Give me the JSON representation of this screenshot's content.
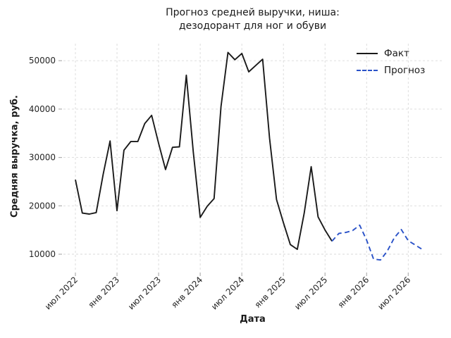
{
  "title": {
    "line1": "Прогноз средней выручки, ниша:",
    "line2": "дезодорант для ног и обуви"
  },
  "axes": {
    "x_label": "Дата",
    "y_label": "Средняя выручка, руб."
  },
  "legend": [
    {
      "label": "Факт",
      "style": "solid",
      "color": "#1a1a1a"
    },
    {
      "label": "Прогноз",
      "style": "dashed",
      "color": "#2a52c8"
    }
  ],
  "chart_data": {
    "type": "line",
    "title": "Прогноз средней выручки, ниша: дезодорант для ног и обуви",
    "xlabel": "Дата",
    "ylabel": "Средняя выручка, руб.",
    "grid": true,
    "grid_style": "dashed-light-gray",
    "legend_position": "upper right",
    "x_tick_labels": [
      "июл 2022",
      "янв 2023",
      "июл 2023",
      "янв 2024",
      "июл 2024",
      "янв 2025",
      "июл 2025",
      "янв 2026",
      "июл 2026"
    ],
    "x_tick_month_index": [
      0,
      6,
      12,
      18,
      24,
      30,
      36,
      42,
      48
    ],
    "y_ticks": [
      10000,
      20000,
      30000,
      40000,
      50000
    ],
    "ylim": [
      6500,
      53500
    ],
    "x_origin_month": "2022-07",
    "series": [
      {
        "name": "Факт",
        "color": "#1a1a1a",
        "style": "solid",
        "months": [
          "2022-07",
          "2022-08",
          "2022-09",
          "2022-10",
          "2022-11",
          "2022-12",
          "2023-01",
          "2023-02",
          "2023-03",
          "2023-04",
          "2023-05",
          "2023-06",
          "2023-07",
          "2023-08",
          "2023-09",
          "2023-10",
          "2023-11",
          "2023-12",
          "2024-01",
          "2024-02",
          "2024-03",
          "2024-04",
          "2024-05",
          "2024-06",
          "2024-07",
          "2024-08",
          "2024-09",
          "2024-10",
          "2024-11",
          "2024-12",
          "2025-01",
          "2025-02",
          "2025-03",
          "2025-04",
          "2025-05",
          "2025-06",
          "2025-07",
          "2025-08"
        ],
        "values": [
          25400,
          18500,
          18300,
          18600,
          26500,
          33400,
          19000,
          31500,
          33300,
          33300,
          37000,
          38700,
          32900,
          27500,
          32100,
          32200,
          47000,
          31100,
          17600,
          19900,
          21500,
          40500,
          51700,
          50200,
          51500,
          47700,
          49000,
          50300,
          34000,
          21300,
          16500,
          12000,
          11000,
          18500,
          28100,
          17700,
          15000,
          12700
        ]
      },
      {
        "name": "Прогноз",
        "color": "#2a52c8",
        "style": "dashed",
        "months": [
          "2025-08",
          "2025-09",
          "2025-10",
          "2025-11",
          "2025-12",
          "2026-01",
          "2026-02",
          "2026-03",
          "2026-04",
          "2026-05",
          "2026-06",
          "2026-07",
          "2026-08",
          "2026-09"
        ],
        "values": [
          12700,
          14300,
          14500,
          14900,
          16000,
          12900,
          9000,
          8800,
          10700,
          13400,
          15100,
          12800,
          11900,
          11000
        ]
      }
    ]
  }
}
